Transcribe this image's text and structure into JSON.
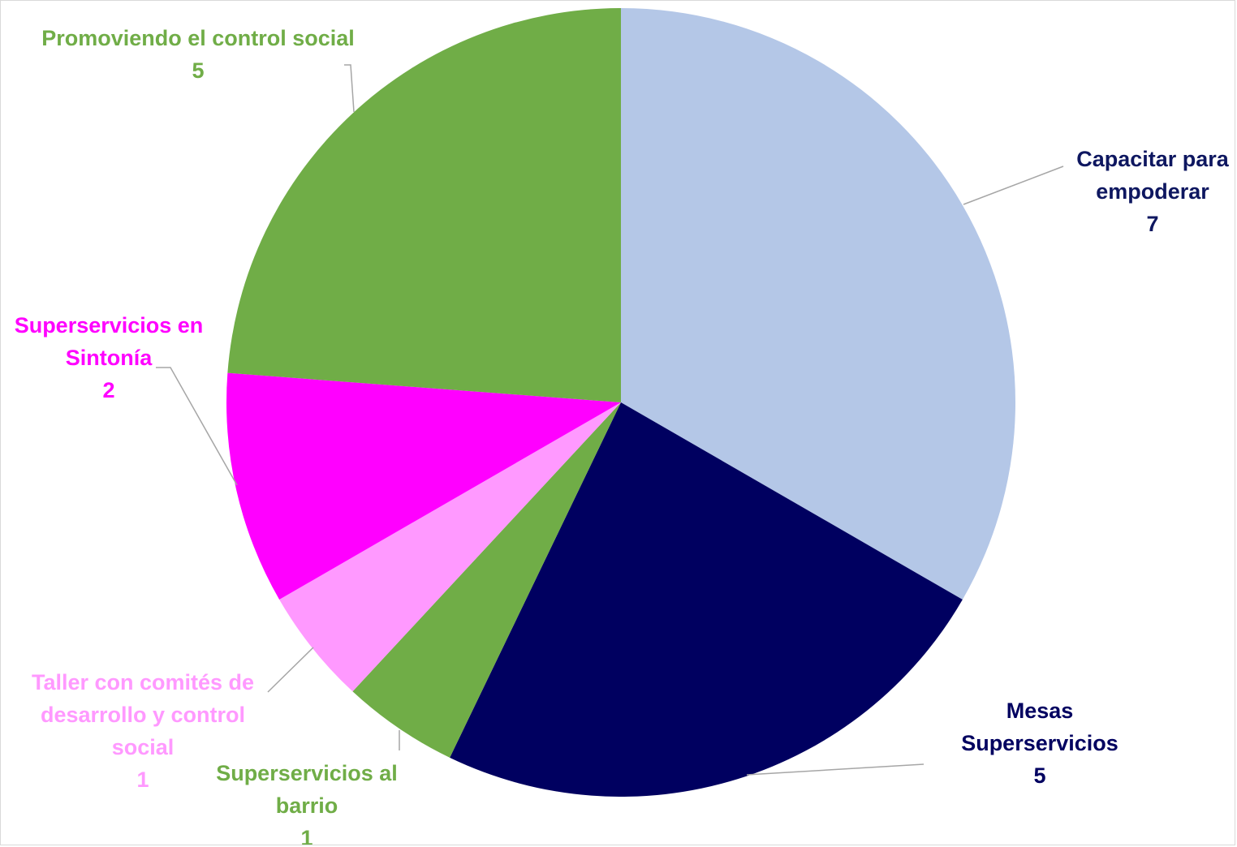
{
  "chart_data": {
    "type": "pie",
    "title": "",
    "start_angle_deg": 0,
    "direction": "clockwise",
    "slices": [
      {
        "label": "Capacitar para empodear",
        "label_lines": [
          "Capacitar para",
          "empoderar"
        ],
        "value": 7,
        "color": "#b4c7e7",
        "label_color": "#0e1760"
      },
      {
        "label": "Mesas Superservicios",
        "label_lines": [
          "Mesas",
          "Superservicios"
        ],
        "value": 5,
        "color": "#000060",
        "label_color": "#000060"
      },
      {
        "label": "Superservicios al barrio",
        "label_lines": [
          "Superservicios al",
          "barrio"
        ],
        "value": 1,
        "color": "#70ad47",
        "label_color": "#70ad47"
      },
      {
        "label": "Taller con comités de desarrollo y control social",
        "label_lines": [
          "Taller con comités de",
          "desarrollo y control",
          "social"
        ],
        "value": 1,
        "color": "#ff99ff",
        "label_color": "#ff99ff"
      },
      {
        "label": "Superservicios en Sintonía",
        "label_lines": [
          "Superservicios en",
          "Sintonía"
        ],
        "value": 2,
        "color": "#ff00ff",
        "label_color": "#ff00ff"
      },
      {
        "label": "Promoviendo el control social",
        "label_lines": [
          "Promoviendo el control social"
        ],
        "value": 5,
        "color": "#70ad47",
        "label_color": "#70ad47"
      }
    ]
  }
}
